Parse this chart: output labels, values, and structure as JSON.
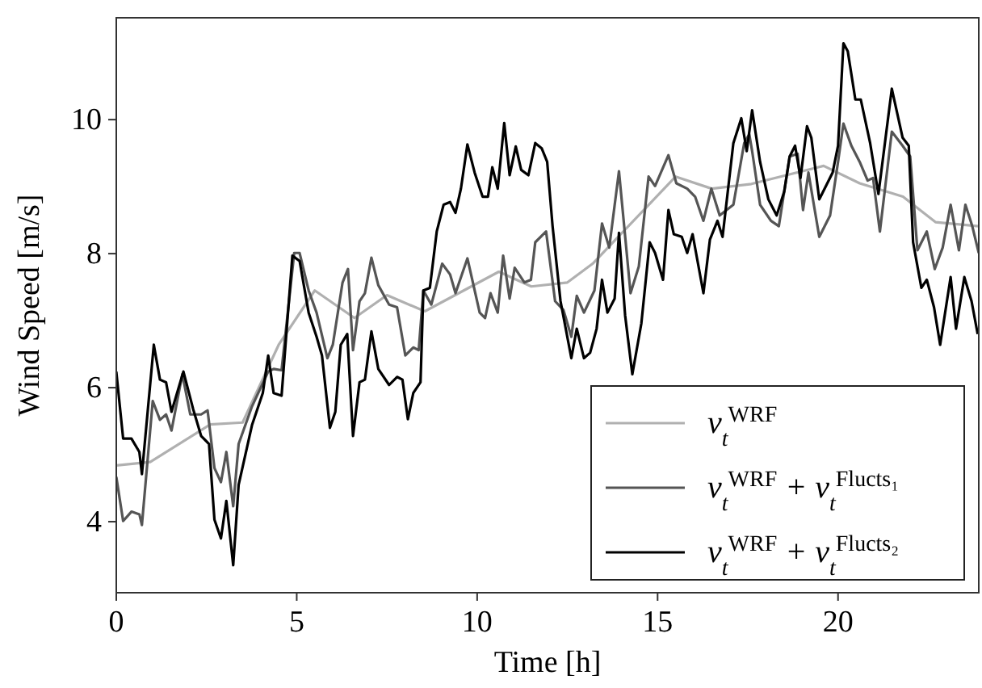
{
  "chart_data": {
    "type": "line",
    "xlabel": "Time [h]",
    "ylabel": "Wind Speed [m/s]",
    "xlim": [
      0,
      23.9
    ],
    "ylim": [
      2.94,
      11.52
    ],
    "xticks": [
      0,
      5,
      10,
      15,
      20
    ],
    "yticks": [
      4,
      6,
      8,
      10
    ],
    "grid": false,
    "legend": "bottom right",
    "marker": "none",
    "line_style": "solid",
    "series": [
      {
        "name": "v$_{t}$$^{WRF}$",
        "color": "#b0b0b0",
        "x": [
          0,
          0.94,
          2.6,
          3.5,
          4.5,
          5.5,
          6.6,
          7.5,
          8.55,
          10.6,
          11.5,
          12.5,
          13.2,
          15.5,
          16.5,
          17.6,
          19.6,
          20.6,
          21.8,
          22.7,
          23.9
        ],
        "values": [
          4.84,
          4.89,
          5.45,
          5.48,
          6.64,
          7.45,
          7.04,
          7.38,
          7.14,
          7.73,
          7.51,
          7.57,
          7.85,
          9.15,
          8.97,
          9.04,
          9.31,
          9.05,
          8.85,
          8.47,
          8.41
        ]
      },
      {
        "name": "v$_{t}$$^{WRF}$ + v$_{t}$$^{Flucts₁}$",
        "color": "#555555",
        "x": [
          0,
          0.19,
          0.42,
          0.64,
          0.71,
          1.01,
          1.21,
          1.38,
          1.53,
          1.83,
          2.05,
          2.35,
          2.53,
          2.72,
          2.9,
          3.05,
          3.24,
          3.39,
          3.76,
          4.21,
          4.36,
          4.58,
          4.93,
          5.08,
          5.33,
          5.55,
          5.85,
          6.0,
          6.27,
          6.42,
          6.56,
          6.74,
          6.89,
          7.07,
          7.26,
          7.56,
          7.78,
          8.01,
          8.23,
          8.38,
          8.51,
          8.73,
          9.03,
          9.25,
          9.4,
          9.73,
          10.07,
          10.22,
          10.37,
          10.57,
          10.72,
          10.9,
          11.04,
          11.31,
          11.49,
          11.61,
          11.91,
          12.16,
          12.39,
          12.61,
          12.76,
          12.96,
          13.25,
          13.46,
          13.66,
          13.93,
          14.25,
          14.48,
          14.75,
          14.93,
          15.3,
          15.52,
          15.82,
          16.04,
          16.27,
          16.49,
          16.72,
          17.1,
          17.4,
          17.54,
          17.62,
          17.84,
          18.14,
          18.36,
          18.66,
          18.88,
          19.03,
          19.18,
          19.48,
          19.78,
          20.0,
          20.15,
          20.37,
          20.6,
          20.82,
          20.97,
          21.16,
          21.49,
          21.79,
          22.0,
          22.2,
          22.46,
          22.68,
          22.9,
          23.12,
          23.35,
          23.53,
          23.72,
          23.9
        ],
        "values": [
          4.67,
          4.01,
          4.15,
          4.11,
          3.95,
          5.8,
          5.52,
          5.6,
          5.36,
          6.2,
          5.6,
          5.6,
          5.66,
          4.8,
          4.59,
          5.04,
          4.23,
          5.16,
          5.72,
          6.24,
          6.28,
          6.26,
          8.01,
          8.01,
          7.45,
          7.12,
          6.44,
          6.64,
          7.57,
          7.77,
          6.56,
          7.29,
          7.41,
          7.94,
          7.53,
          7.24,
          7.2,
          6.48,
          6.6,
          6.56,
          7.45,
          7.24,
          7.85,
          7.69,
          7.41,
          7.93,
          7.12,
          7.04,
          7.41,
          7.12,
          7.97,
          7.33,
          7.79,
          7.57,
          7.61,
          8.17,
          8.33,
          7.29,
          7.16,
          6.76,
          7.37,
          7.12,
          7.45,
          8.45,
          8.09,
          9.23,
          7.41,
          7.81,
          9.15,
          9.01,
          9.47,
          9.05,
          8.97,
          8.85,
          8.49,
          8.97,
          8.57,
          8.73,
          9.65,
          9.78,
          9.53,
          8.73,
          8.49,
          8.41,
          9.45,
          9.49,
          8.65,
          9.21,
          8.25,
          8.57,
          9.37,
          9.94,
          9.61,
          9.37,
          9.09,
          9.13,
          8.33,
          9.82,
          9.61,
          9.45,
          8.05,
          8.33,
          7.77,
          8.09,
          8.73,
          8.05,
          8.73,
          8.41,
          8.01
        ]
      },
      {
        "name": "v$_{t}$$^{WRF}$ + v$_{t}$$^{Flucts₂}$",
        "color": "#000000",
        "x": [
          0,
          0.19,
          0.42,
          0.64,
          0.71,
          1.04,
          1.21,
          1.38,
          1.53,
          1.86,
          2.13,
          2.35,
          2.57,
          2.72,
          2.9,
          3.05,
          3.24,
          3.39,
          3.76,
          4.06,
          4.21,
          4.36,
          4.58,
          4.88,
          5.08,
          5.33,
          5.55,
          5.7,
          5.92,
          6.07,
          6.22,
          6.4,
          6.56,
          6.74,
          6.89,
          7.07,
          7.26,
          7.56,
          7.78,
          7.93,
          8.08,
          8.23,
          8.43,
          8.51,
          8.69,
          8.88,
          9.07,
          9.25,
          9.4,
          9.55,
          9.73,
          9.93,
          10.15,
          10.3,
          10.42,
          10.57,
          10.75,
          10.9,
          11.07,
          11.22,
          11.42,
          11.61,
          11.79,
          11.94,
          12.09,
          12.31,
          12.61,
          12.76,
          12.96,
          13.13,
          13.31,
          13.46,
          13.61,
          13.81,
          13.93,
          14.1,
          14.3,
          14.55,
          14.78,
          14.93,
          15.15,
          15.3,
          15.45,
          15.67,
          15.82,
          15.97,
          16.27,
          16.45,
          16.66,
          16.8,
          17.1,
          17.32,
          17.47,
          17.62,
          17.84,
          18.07,
          18.3,
          18.51,
          18.66,
          18.81,
          18.96,
          19.14,
          19.26,
          19.48,
          19.85,
          20.0,
          20.15,
          20.27,
          20.48,
          20.63,
          20.89,
          21.12,
          21.49,
          21.79,
          21.96,
          22.08,
          22.31,
          22.46,
          22.66,
          22.83,
          23.12,
          23.27,
          23.5,
          23.7,
          23.87
        ],
        "values": [
          6.24,
          5.24,
          5.24,
          5.04,
          4.71,
          6.64,
          6.12,
          6.08,
          5.64,
          6.24,
          5.68,
          5.28,
          5.16,
          4.03,
          3.75,
          4.31,
          3.35,
          4.55,
          5.44,
          5.92,
          6.48,
          5.92,
          5.88,
          7.97,
          7.89,
          7.12,
          6.76,
          6.48,
          5.4,
          5.64,
          6.64,
          6.8,
          5.28,
          6.08,
          6.12,
          6.84,
          6.28,
          6.04,
          6.16,
          6.12,
          5.53,
          5.92,
          6.08,
          7.45,
          7.49,
          8.33,
          8.73,
          8.77,
          8.61,
          8.97,
          9.63,
          9.21,
          8.85,
          8.85,
          9.29,
          8.97,
          9.95,
          9.17,
          9.6,
          9.25,
          9.17,
          9.65,
          9.57,
          9.37,
          8.41,
          7.29,
          6.44,
          6.88,
          6.44,
          6.52,
          6.88,
          7.61,
          7.12,
          7.33,
          8.31,
          7.08,
          6.2,
          6.96,
          8.17,
          8.01,
          7.61,
          8.65,
          8.29,
          8.25,
          8.01,
          8.29,
          7.41,
          8.21,
          8.49,
          8.25,
          9.65,
          10.02,
          9.53,
          10.14,
          9.37,
          8.81,
          8.57,
          8.93,
          9.45,
          9.61,
          9.13,
          9.9,
          9.73,
          8.81,
          9.21,
          9.61,
          11.14,
          11.02,
          10.3,
          10.3,
          9.65,
          8.89,
          10.46,
          9.73,
          9.61,
          8.17,
          7.49,
          7.61,
          7.2,
          6.64,
          7.65,
          6.88,
          7.65,
          7.29,
          6.8
        ]
      }
    ]
  }
}
